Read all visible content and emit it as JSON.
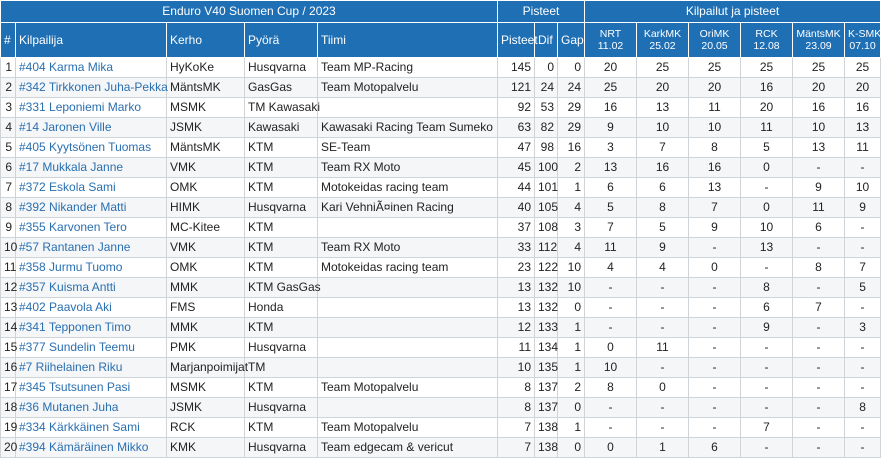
{
  "groups": {
    "title": "Enduro V40 Suomen Cup / 2023",
    "points": "Pisteet",
    "races": "Kilpailut ja pisteet"
  },
  "columns": {
    "rank": "#",
    "rider": "Kilpailija",
    "club": "Kerho",
    "bike": "Pyörä",
    "team": "Tiimi",
    "points": "Pisteet",
    "dif": "Dif",
    "gap": "Gap"
  },
  "events": [
    {
      "name": "NRT",
      "date": "11.02"
    },
    {
      "name": "KarkMK",
      "date": "25.02"
    },
    {
      "name": "OriMK",
      "date": "20.05"
    },
    {
      "name": "RCK",
      "date": "12.08"
    },
    {
      "name": "MäntsMK",
      "date": "23.09"
    },
    {
      "name": "K-SMK",
      "date": "07.10"
    }
  ],
  "rows": [
    {
      "pos": "1",
      "rider": "#404 Karma Mika",
      "club": "HyKoKe",
      "bike": "Husqvarna",
      "team": "Team MP-Racing",
      "points": "145",
      "dif": "0",
      "gap": "0",
      "ev": [
        "20",
        "25",
        "25",
        "25",
        "25",
        "25"
      ]
    },
    {
      "pos": "2",
      "rider": "#342 Tirkkonen Juha-Pekka",
      "club": "MäntsMK",
      "bike": "GasGas",
      "team": "Team Motopalvelu",
      "points": "121",
      "dif": "24",
      "gap": "24",
      "ev": [
        "25",
        "20",
        "20",
        "16",
        "20",
        "20"
      ]
    },
    {
      "pos": "3",
      "rider": "#331 Leponiemi Marko",
      "club": "MSMK",
      "bike": "TM Kawasaki",
      "team": "",
      "points": "92",
      "dif": "53",
      "gap": "29",
      "ev": [
        "16",
        "13",
        "11",
        "20",
        "16",
        "16"
      ]
    },
    {
      "pos": "4",
      "rider": "#14 Jaronen Ville",
      "club": "JSMK",
      "bike": "Kawasaki",
      "team": "Kawasaki Racing Team Sumeko",
      "points": "63",
      "dif": "82",
      "gap": "29",
      "ev": [
        "9",
        "10",
        "10",
        "11",
        "10",
        "13"
      ]
    },
    {
      "pos": "5",
      "rider": "#405 Kyytsönen Tuomas",
      "club": "MäntsMK",
      "bike": "KTM",
      "team": "SE-Team",
      "points": "47",
      "dif": "98",
      "gap": "16",
      "ev": [
        "3",
        "7",
        "8",
        "5",
        "13",
        "11"
      ]
    },
    {
      "pos": "6",
      "rider": "#17 Mukkala Janne",
      "club": "VMK",
      "bike": "KTM",
      "team": "Team RX Moto",
      "points": "45",
      "dif": "100",
      "gap": "2",
      "ev": [
        "13",
        "16",
        "16",
        "0",
        "-",
        "-"
      ]
    },
    {
      "pos": "7",
      "rider": "#372 Eskola Sami",
      "club": "OMK",
      "bike": "KTM",
      "team": "Motokeidas racing team",
      "points": "44",
      "dif": "101",
      "gap": "1",
      "ev": [
        "6",
        "6",
        "13",
        "-",
        "9",
        "10"
      ]
    },
    {
      "pos": "8",
      "rider": "#392 Nikander Matti",
      "club": "HIMK",
      "bike": "Husqvarna",
      "team": " Kari VehniÃ¤inen Racing",
      "points": "40",
      "dif": "105",
      "gap": "4",
      "ev": [
        "5",
        "8",
        "7",
        "0",
        "11",
        "9"
      ]
    },
    {
      "pos": "9",
      "rider": "#355 Karvonen Tero",
      "club": "MC-Kitee",
      "bike": "KTM",
      "team": "",
      "points": "37",
      "dif": "108",
      "gap": "3",
      "ev": [
        "7",
        "5",
        "9",
        "10",
        "6",
        "-"
      ]
    },
    {
      "pos": "10",
      "rider": "#57 Rantanen Janne",
      "club": "VMK",
      "bike": "KTM",
      "team": "Team RX Moto",
      "points": "33",
      "dif": "112",
      "gap": "4",
      "ev": [
        "11",
        "9",
        "-",
        "13",
        "-",
        "-"
      ]
    },
    {
      "pos": "11",
      "rider": "#358 Jurmu Tuomo",
      "club": "OMK",
      "bike": "KTM",
      "team": "Motokeidas racing team",
      "points": "23",
      "dif": "122",
      "gap": "10",
      "ev": [
        "4",
        "4",
        "0",
        "-",
        "8",
        "7"
      ]
    },
    {
      "pos": "12",
      "rider": "#357 Kuisma Antti",
      "club": "MMK",
      "bike": "KTM GasGas",
      "team": "",
      "points": "13",
      "dif": "132",
      "gap": "10",
      "ev": [
        "-",
        "-",
        "-",
        "8",
        "-",
        "5"
      ]
    },
    {
      "pos": "13",
      "rider": "#402 Paavola Aki",
      "club": "FMS",
      "bike": "Honda",
      "team": "",
      "points": "13",
      "dif": "132",
      "gap": "0",
      "ev": [
        "-",
        "-",
        "-",
        "6",
        "7",
        "-"
      ]
    },
    {
      "pos": "14",
      "rider": "#341 Tepponen Timo",
      "club": "MMK",
      "bike": "KTM",
      "team": "",
      "points": "12",
      "dif": "133",
      "gap": "1",
      "ev": [
        "-",
        "-",
        "-",
        "9",
        "-",
        "3"
      ]
    },
    {
      "pos": "15",
      "rider": "#377 Sundelin Teemu",
      "club": "PMK",
      "bike": "Husqvarna",
      "team": "",
      "points": "11",
      "dif": "134",
      "gap": "1",
      "ev": [
        "0",
        "11",
        "-",
        "-",
        "-",
        "-"
      ]
    },
    {
      "pos": "16",
      "rider": "#7 Riihelainen Riku",
      "club": "Marjanpoimijat",
      "bike": "TM",
      "team": "",
      "points": "10",
      "dif": "135",
      "gap": "1",
      "ev": [
        "10",
        "-",
        "-",
        "-",
        "-",
        "-"
      ]
    },
    {
      "pos": "17",
      "rider": "#345 Tsutsunen Pasi",
      "club": "MSMK",
      "bike": "KTM",
      "team": "Team Motopalvelu",
      "points": "8",
      "dif": "137",
      "gap": "2",
      "ev": [
        "8",
        "0",
        "-",
        "-",
        "-",
        "-"
      ]
    },
    {
      "pos": "18",
      "rider": "#36 Mutanen Juha",
      "club": "JSMK",
      "bike": "Husqvarna",
      "team": "",
      "points": "8",
      "dif": "137",
      "gap": "0",
      "ev": [
        "-",
        "-",
        "-",
        "-",
        "-",
        "8"
      ]
    },
    {
      "pos": "19",
      "rider": "#334 Kärkkäinen Sami",
      "club": "RCK",
      "bike": "KTM",
      "team": "Team Motopalvelu",
      "points": "7",
      "dif": "138",
      "gap": "1",
      "ev": [
        "-",
        "-",
        "-",
        "7",
        "-",
        "-"
      ]
    },
    {
      "pos": "20",
      "rider": "#394 Kämäräinen Mikko",
      "club": "KMK",
      "bike": "Husqvarna",
      "team": "Team edgecam & vericut",
      "points": "7",
      "dif": "138",
      "gap": "0",
      "ev": [
        "0",
        "1",
        "6",
        "-",
        "-",
        "-"
      ]
    }
  ]
}
